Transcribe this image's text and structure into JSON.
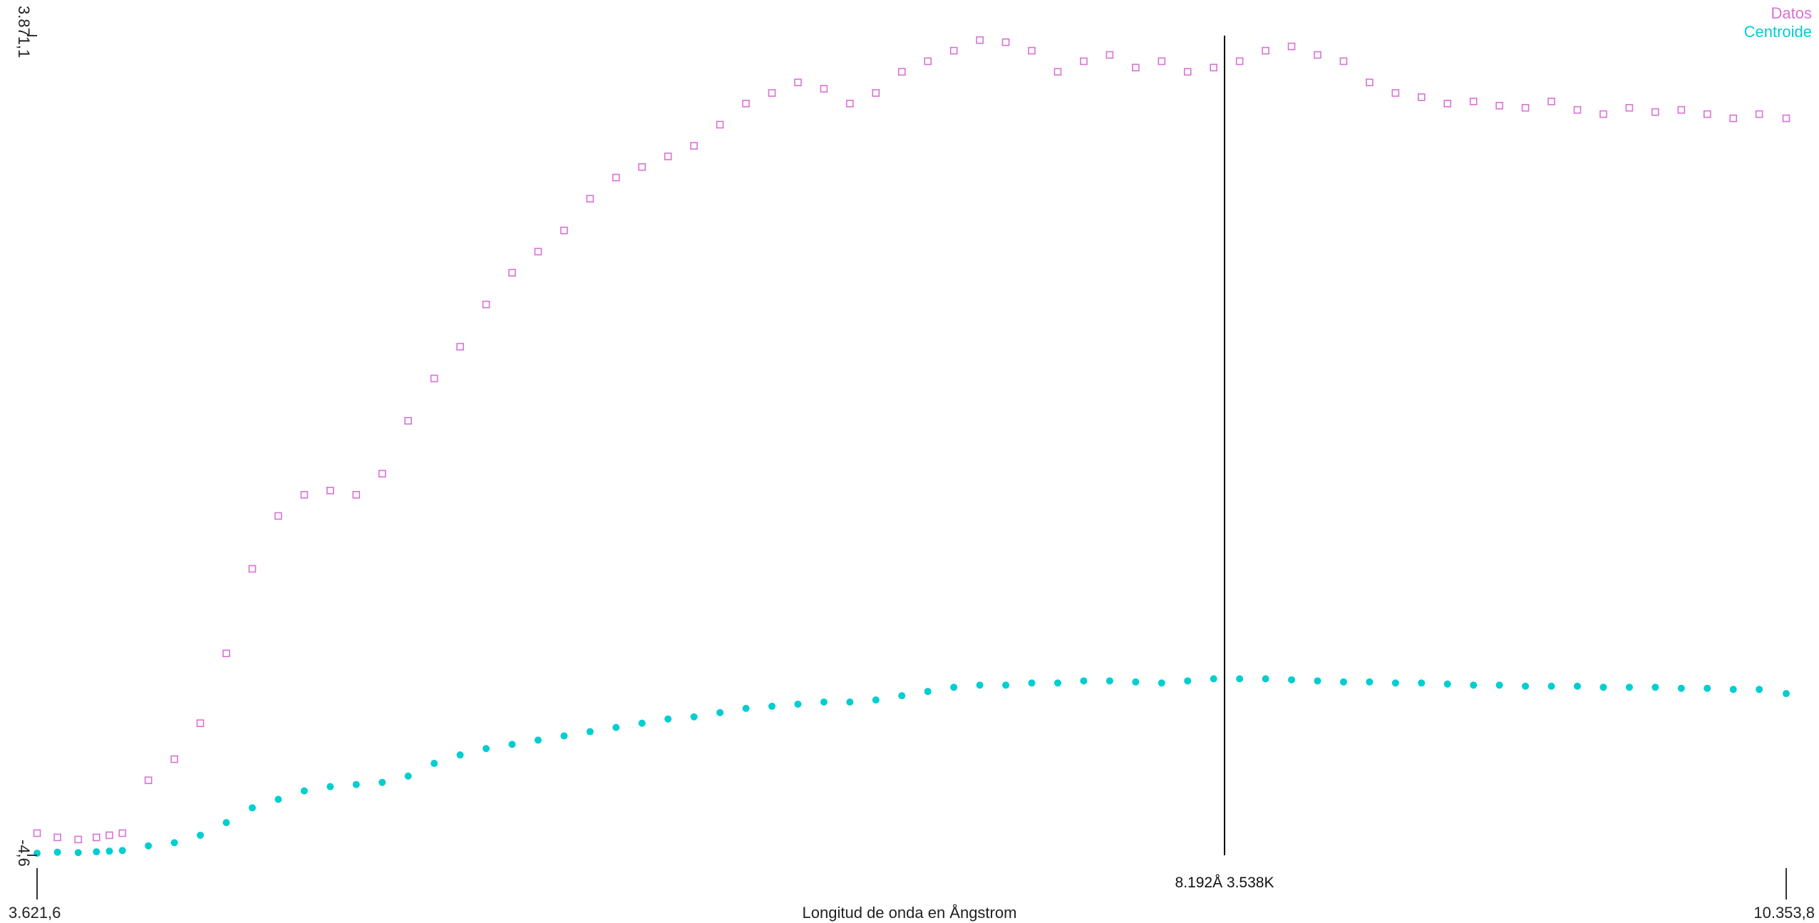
{
  "chart_data": {
    "type": "scatter",
    "title": "",
    "xlabel": "Longitud de onda en Ångstrom",
    "ylabel": "",
    "xlim": [
      3621.6,
      10353.8
    ],
    "ylim": [
      -4.6,
      3871.1
    ],
    "x_tick_labels": {
      "min": "3.621,6",
      "max": "10.353,8"
    },
    "y_tick_labels": {
      "min": "-4,6",
      "max": "3.871,1"
    },
    "cursor": {
      "x": 8192,
      "label": "8.192Å 3.538K"
    },
    "legend_position": "top-right",
    "grid": false,
    "series": [
      {
        "name": "Datos",
        "marker": "hollow-square",
        "color": "#da70d6",
        "x": [
          3621.6,
          3700,
          3780,
          3850,
          3900,
          3950,
          4050,
          4150,
          4250,
          4350,
          4450,
          4550,
          4650,
          4750,
          4850,
          4950,
          5050,
          5150,
          5250,
          5350,
          5450,
          5550,
          5650,
          5750,
          5850,
          5950,
          6050,
          6150,
          6250,
          6350,
          6450,
          6550,
          6650,
          6750,
          6850,
          6950,
          7050,
          7150,
          7250,
          7350,
          7450,
          7550,
          7650,
          7750,
          7850,
          7950,
          8050,
          8150,
          8250,
          8350,
          8450,
          8550,
          8650,
          8750,
          8850,
          8950,
          9050,
          9150,
          9250,
          9350,
          9450,
          9550,
          9650,
          9750,
          9850,
          9950,
          10050,
          10150,
          10250,
          10353.8
        ],
        "y": [
          100,
          80,
          70,
          80,
          90,
          100,
          350,
          450,
          620,
          950,
          1350,
          1600,
          1700,
          1720,
          1700,
          1800,
          2050,
          2250,
          2400,
          2600,
          2750,
          2850,
          2950,
          3100,
          3200,
          3250,
          3300,
          3350,
          3450,
          3550,
          3600,
          3650,
          3620,
          3550,
          3600,
          3700,
          3750,
          3800,
          3850,
          3840,
          3800,
          3700,
          3750,
          3780,
          3720,
          3750,
          3700,
          3720,
          3750,
          3800,
          3820,
          3780,
          3750,
          3650,
          3600,
          3580,
          3550,
          3560,
          3540,
          3530,
          3560,
          3520,
          3500,
          3530,
          3510,
          3520,
          3500,
          3480,
          3500,
          3480
        ]
      },
      {
        "name": "Centroide",
        "marker": "filled-circle",
        "color": "#00ced1",
        "x": [
          3621.6,
          3700,
          3780,
          3850,
          3900,
          3950,
          4050,
          4150,
          4250,
          4350,
          4450,
          4550,
          4650,
          4750,
          4850,
          4950,
          5050,
          5150,
          5250,
          5350,
          5450,
          5550,
          5650,
          5750,
          5850,
          5950,
          6050,
          6150,
          6250,
          6350,
          6450,
          6550,
          6650,
          6750,
          6850,
          6950,
          7050,
          7150,
          7250,
          7350,
          7450,
          7550,
          7650,
          7750,
          7850,
          7950,
          8050,
          8150,
          8250,
          8350,
          8450,
          8550,
          8650,
          8750,
          8850,
          8950,
          9050,
          9150,
          9250,
          9350,
          9450,
          9550,
          9650,
          9750,
          9850,
          9950,
          10050,
          10150,
          10250,
          10353.8
        ],
        "y": [
          5,
          10,
          8,
          12,
          15,
          18,
          40,
          55,
          90,
          150,
          220,
          260,
          300,
          320,
          330,
          340,
          370,
          430,
          470,
          500,
          520,
          540,
          560,
          580,
          600,
          620,
          640,
          650,
          670,
          690,
          700,
          710,
          720,
          720,
          730,
          750,
          770,
          790,
          800,
          800,
          810,
          810,
          820,
          820,
          815,
          810,
          820,
          830,
          830,
          830,
          825,
          820,
          815,
          815,
          810,
          810,
          805,
          800,
          800,
          795,
          795,
          795,
          790,
          790,
          790,
          785,
          785,
          780,
          780,
          760
        ]
      }
    ]
  }
}
